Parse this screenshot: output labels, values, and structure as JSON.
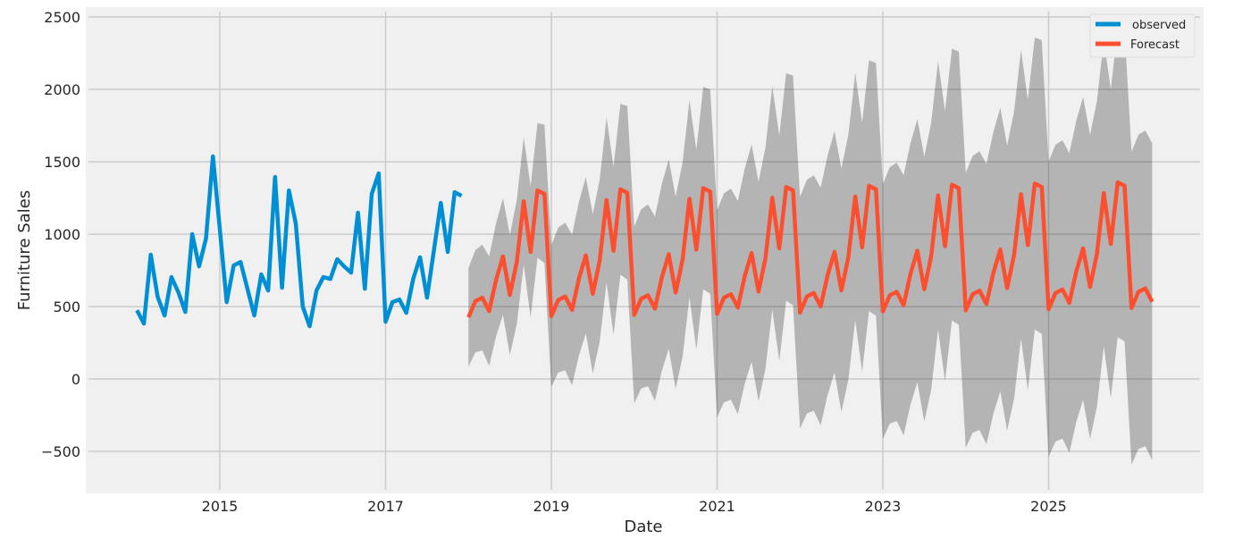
{
  "chart_data": {
    "type": "line",
    "title": "",
    "xlabel": "Date",
    "ylabel": "Furniture Sales",
    "ylim": [
      -800,
      2580
    ],
    "xlim": [
      "2013-08",
      "2026-11"
    ],
    "yticks": [
      -500,
      0,
      500,
      1000,
      1500,
      2000,
      2500
    ],
    "ytick_labels": [
      "−500",
      "0",
      "500",
      "1000",
      "1500",
      "2000",
      "2500"
    ],
    "xticks": [
      2015,
      2017,
      2019,
      2021,
      2023,
      2025
    ],
    "xtick_labels": [
      "2015",
      "2017",
      "2019",
      "2021",
      "2023",
      "2025"
    ],
    "grid": true,
    "legend": {
      "position": "upper right",
      "entries": [
        {
          "label": "observed",
          "color": "#008fd5"
        },
        {
          "label": "Forecast",
          "color": "#fc4f30"
        }
      ]
    },
    "colors": {
      "observed": "#008fd5",
      "forecast": "#fc4f30",
      "confidence_band": "#000000",
      "confidence_band_alpha": 0.25,
      "plot_background": "#f0f0f0",
      "grid": "#cbcbcb"
    },
    "series": [
      {
        "name": "observed",
        "start": "2014-01",
        "frequency": "monthly",
        "values": [
          475,
          383,
          858,
          568,
          438,
          704,
          599,
          463,
          1000,
          778,
          969,
          1537,
          1034,
          531,
          784,
          808,
          623,
          438,
          722,
          611,
          1395,
          630,
          1302,
          1074,
          500,
          364,
          611,
          704,
          691,
          827,
          778,
          734,
          1148,
          623,
          1278,
          1420,
          395,
          531,
          549,
          457,
          691,
          840,
          562,
          889,
          1216,
          877,
          1290,
          1265
        ]
      },
      {
        "name": "Forecast",
        "start": "2018-01",
        "frequency": "monthly",
        "values": [
          426,
          537,
          562,
          469,
          685,
          846,
          580,
          809,
          1228,
          877,
          1302,
          1278,
          434,
          545,
          570,
          477,
          693,
          854,
          588,
          817,
          1236,
          885,
          1310,
          1286,
          442,
          553,
          578,
          485,
          701,
          862,
          596,
          825,
          1244,
          893,
          1318,
          1294,
          450,
          561,
          586,
          493,
          709,
          870,
          604,
          833,
          1252,
          901,
          1326,
          1302,
          458,
          569,
          594,
          501,
          717,
          878,
          612,
          841,
          1260,
          909,
          1334,
          1310,
          466,
          577,
          602,
          509,
          725,
          886,
          620,
          849,
          1268,
          917,
          1342,
          1318,
          474,
          585,
          610,
          517,
          733,
          894,
          628,
          857,
          1276,
          925,
          1350,
          1326,
          482,
          593,
          618,
          525,
          741,
          902,
          636,
          865,
          1284,
          933,
          1358,
          1334,
          490,
          601,
          626,
          533
        ],
        "ci_half_width": [
          340,
          353,
          365,
          378,
          390,
          403,
          415,
          428,
          440,
          453,
          465,
          478,
          490,
          500,
          510,
          520,
          530,
          540,
          550,
          560,
          570,
          580,
          590,
          600,
          610,
          619,
          628,
          636,
          645,
          654,
          663,
          671,
          680,
          689,
          698,
          706,
          715,
          722,
          729,
          736,
          743,
          750,
          758,
          765,
          772,
          779,
          786,
          793,
          800,
          807,
          813,
          820,
          827,
          833,
          840,
          847,
          853,
          860,
          867,
          873,
          880,
          886,
          892,
          898,
          903,
          909,
          915,
          921,
          927,
          933,
          938,
          944,
          950,
          956,
          962,
          968,
          973,
          979,
          985,
          991,
          997,
          1003,
          1008,
          1014,
          1020,
          1025,
          1030,
          1035,
          1040,
          1045,
          1050,
          1055,
          1060,
          1065,
          1070,
          1075,
          1080,
          1085,
          1090,
          1095
        ]
      }
    ]
  }
}
